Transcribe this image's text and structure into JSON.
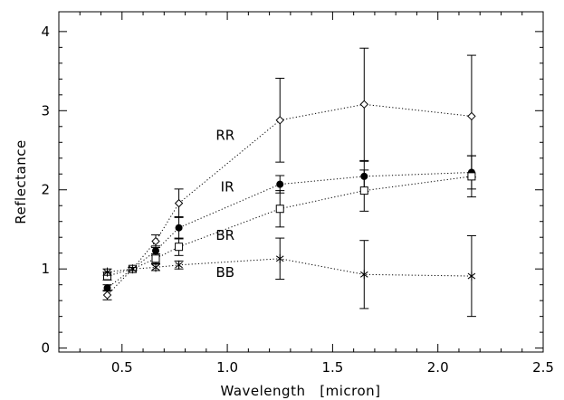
{
  "chart_data": {
    "type": "scatter",
    "title": "",
    "xlabel": "Wavelength   [micron]",
    "ylabel": "Reflectance",
    "xlim": [
      0.2,
      2.5
    ],
    "ylim": [
      -0.05,
      4.25
    ],
    "xticks": [
      0.5,
      1.0,
      1.5,
      2.0,
      2.5
    ],
    "xtick_labels": [
      "0.5",
      "1.0",
      "1.5",
      "2.0",
      "2.5"
    ],
    "yticks": [
      0,
      1,
      2,
      3,
      4
    ],
    "ytick_labels": [
      "0",
      "1",
      "2",
      "3",
      "4"
    ],
    "grid": false,
    "line_style": "dotted",
    "series": [
      {
        "name": "RR",
        "marker": "diamond-open",
        "x": [
          0.43,
          0.55,
          0.66,
          0.77,
          1.25,
          1.65,
          2.16
        ],
        "y": [
          0.67,
          1.0,
          1.35,
          1.83,
          2.88,
          3.08,
          2.93
        ],
        "yerr": [
          0.06,
          0.02,
          0.08,
          0.18,
          0.53,
          0.71,
          0.77
        ]
      },
      {
        "name": "IR",
        "marker": "circle-filled",
        "x": [
          0.43,
          0.55,
          0.66,
          0.77,
          1.25,
          1.65,
          2.16
        ],
        "y": [
          0.76,
          1.0,
          1.23,
          1.52,
          2.07,
          2.17,
          2.22
        ],
        "yerr": [
          0.04,
          0.02,
          0.06,
          0.14,
          0.11,
          0.19,
          0.21
        ]
      },
      {
        "name": "BR",
        "marker": "square-open",
        "x": [
          0.43,
          0.55,
          0.66,
          0.77,
          1.25,
          1.65,
          2.16
        ],
        "y": [
          0.91,
          1.0,
          1.13,
          1.28,
          1.76,
          1.99,
          2.17
        ],
        "yerr": [
          0.05,
          0.02,
          0.06,
          0.11,
          0.23,
          0.26,
          0.26
        ]
      },
      {
        "name": "BB",
        "marker": "asterisk",
        "x": [
          0.43,
          0.55,
          0.66,
          0.77,
          1.25,
          1.65,
          2.16
        ],
        "y": [
          0.96,
          1.0,
          1.02,
          1.05,
          1.13,
          0.93,
          0.91
        ],
        "yerr": [
          0.04,
          0.02,
          0.04,
          0.05,
          0.26,
          0.43,
          0.51
        ]
      }
    ],
    "annotations": [
      {
        "text": "RR",
        "x": 0.99,
        "y": 2.63
      },
      {
        "text": "IR",
        "x": 1.0,
        "y": 1.98
      },
      {
        "text": "BR",
        "x": 0.99,
        "y": 1.37
      },
      {
        "text": "BB",
        "x": 0.99,
        "y": 0.9
      }
    ]
  }
}
